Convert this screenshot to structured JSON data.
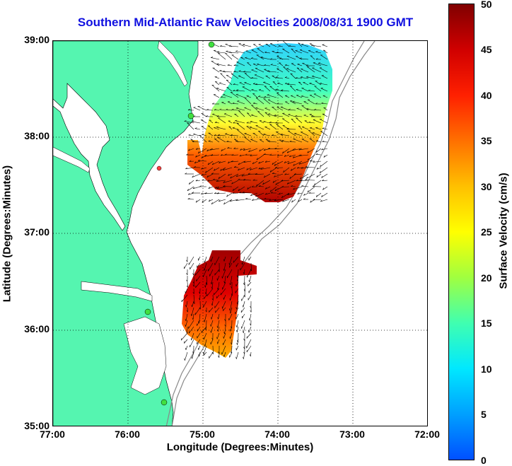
{
  "title": "Southern Mid-Atlantic Raw Velocities 2008/08/31 1900 GMT",
  "xlabel": "Longitude (Degrees:Minutes)",
  "ylabel": "Latitude (Degrees:Minutes)",
  "colorbar_label": "Surface Velocity (cm/s)",
  "lat_ticks": [
    "39:00",
    "38:00",
    "37:00",
    "36:00",
    "35:00"
  ],
  "lon_ticks": [
    "77:00",
    "76:00",
    "75:00",
    "74:00",
    "73:00",
    "72:00"
  ],
  "colorbar_ticks": [
    "50",
    "45",
    "40",
    "35",
    "30",
    "25",
    "20",
    "15",
    "10",
    "5",
    "0"
  ],
  "colors": {
    "land": "#55f5b0",
    "title": "#1010e0",
    "grid": "#000000"
  }
}
